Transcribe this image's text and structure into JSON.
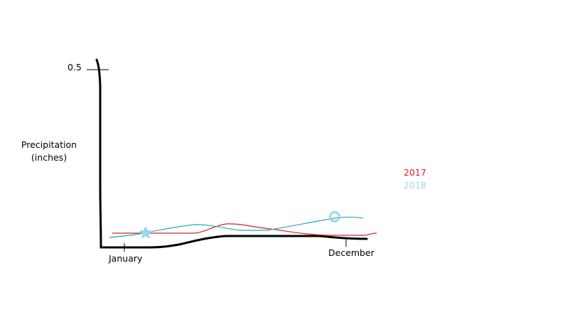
{
  "chart_data": {
    "type": "line",
    "title": "",
    "xlabel": "",
    "ylabel": "Precipitation (inches)",
    "x_ticks": [
      "January",
      "December"
    ],
    "y_ticks": [
      0.5
    ],
    "y_tick_labels": [
      "0.5"
    ],
    "ylim": [
      0,
      0.5
    ],
    "x_start": "January",
    "x_end": "December",
    "legend_position": "right",
    "grid": false,
    "series": [
      {
        "name": "2017",
        "color": "#d2232a",
        "points": [
          {
            "x": "January",
            "y": 0.04
          },
          {
            "x": "June",
            "y": 0.06
          },
          {
            "x": "October",
            "y": 0.03
          },
          {
            "x": "December",
            "y": 0.03
          }
        ]
      },
      {
        "name": "2018",
        "color": "#99d9ea",
        "points": [
          {
            "x": "January",
            "y": 0.03
          },
          {
            "x": "April",
            "y": 0.06
          },
          {
            "x": "July",
            "y": 0.05
          },
          {
            "x": "November",
            "y": 0.08
          },
          {
            "x": "December",
            "y": 0.08
          }
        ],
        "markers": [
          {
            "shape": "star",
            "x": "March",
            "y": 0.04
          },
          {
            "shape": "circle",
            "x": "November",
            "y": 0.08
          }
        ]
      }
    ]
  },
  "colors": {
    "axis": "#000000",
    "line_2017": "#d2232a",
    "line_2018": "#2aa7b8",
    "marker_2018": "#99d9ea"
  }
}
